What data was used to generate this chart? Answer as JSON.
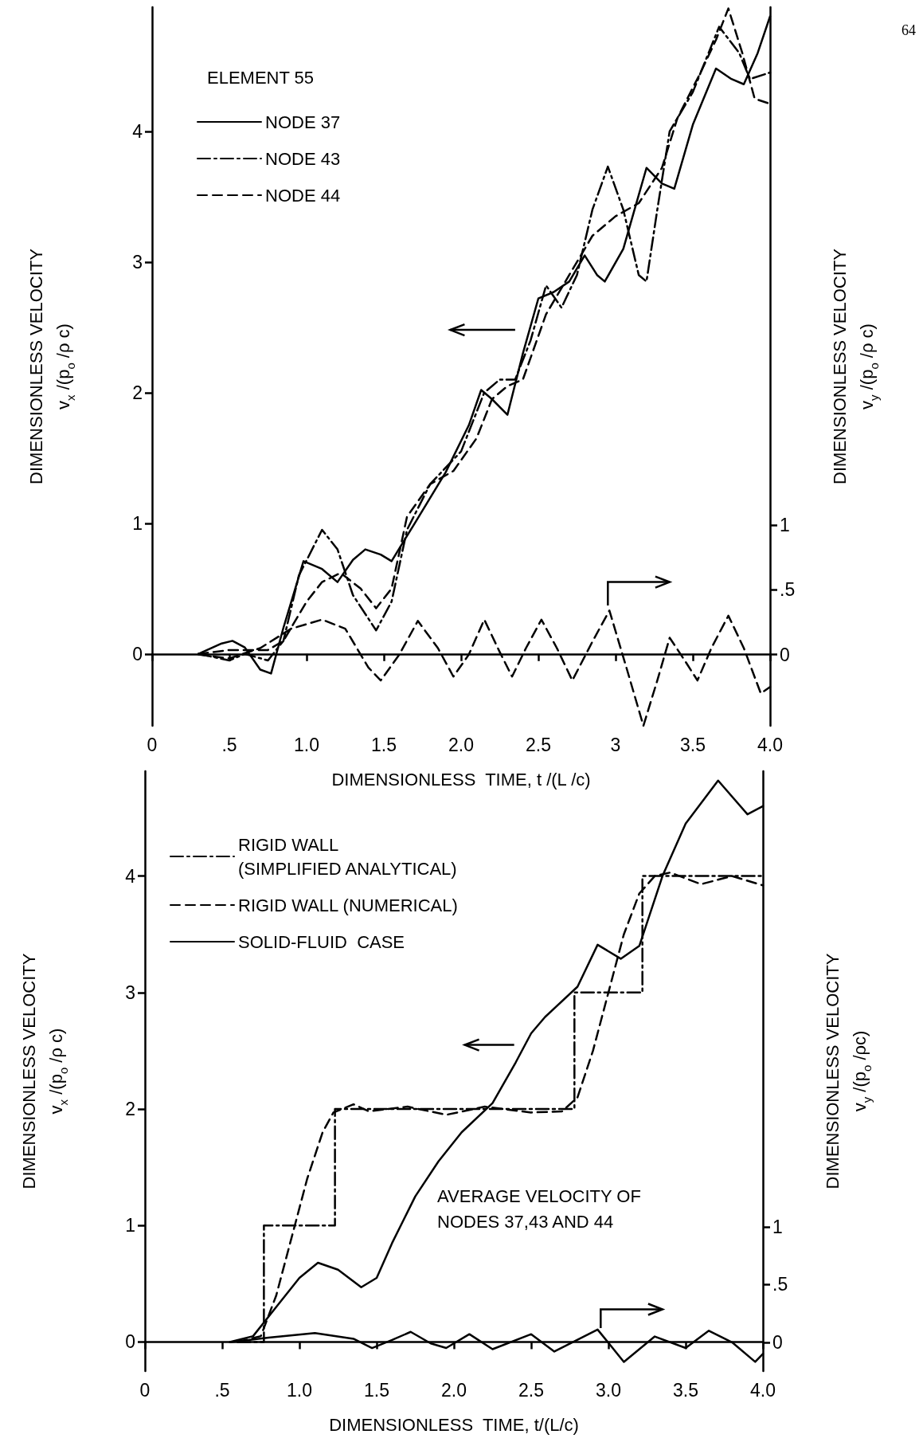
{
  "chart_data": [
    {
      "type": "line",
      "xlabel": "DIMENSIONLESS  TIME, t /(L /c)",
      "ylabel": "DIMENSIONLESS VELOCITY\nv$_{x}$ /(p$_{o}$ /ρ c)",
      "y2label": "DIMENSIONLESS VELOCITY\nv$_{y}$ /(p$_{o}$ /ρ c)",
      "legend_title": "ELEMENT 55",
      "legend": "top left",
      "xlim": [
        0,
        4.0
      ],
      "xticks": [
        0,
        {
          "value": 0.5,
          "label": ".5"
        },
        {
          "value": 1,
          "label": "1.0"
        },
        1.5,
        {
          "value": 2,
          "label": "2.0"
        },
        2.5,
        3,
        3.5,
        {
          "value": 4,
          "label": "4.0"
        }
      ],
      "ylim": [
        -0.55,
        4.95
      ],
      "yticks": [
        0,
        1,
        2,
        3,
        4
      ],
      "y2lim": [
        -0.55,
        5.0
      ],
      "y2ticks": [
        {
          "value": 0,
          "label": "0"
        },
        {
          "value": 0.5,
          "label": ".5"
        },
        {
          "value": 1,
          "label": "1"
        }
      ],
      "annotations": [
        "64"
      ],
      "series": [
        {
          "name": "NODE 37",
          "color": "#000000",
          "line_style": "solid",
          "x": [
            0.3,
            0.45,
            0.52,
            0.6,
            0.7,
            0.77,
            0.85,
            0.98,
            1.1,
            1.2,
            1.3,
            1.38,
            1.48,
            1.55,
            1.7,
            1.9,
            2.05,
            2.13,
            2.2,
            2.3,
            2.4,
            2.5,
            2.6,
            2.7,
            2.8,
            2.88,
            2.93,
            3.05,
            3.2,
            3.3,
            3.38,
            3.5,
            3.65,
            3.75,
            3.83,
            3.92,
            4.0
          ],
          "values": [
            0,
            0.08,
            0.1,
            0.05,
            -0.12,
            -0.15,
            0.2,
            0.71,
            0.65,
            0.55,
            0.72,
            0.8,
            0.76,
            0.71,
            1.0,
            1.39,
            1.75,
            2.02,
            1.95,
            1.83,
            2.3,
            2.72,
            2.77,
            2.85,
            3.05,
            2.9,
            2.85,
            3.1,
            3.72,
            3.6,
            3.56,
            4.05,
            4.48,
            4.4,
            4.36,
            4.6,
            4.88
          ]
        },
        {
          "name": "NODE 43",
          "color": "#000000",
          "line_style": "dashdot",
          "x": [
            0.3,
            0.5,
            0.6,
            0.75,
            0.85,
            0.95,
            1.1,
            1.2,
            1.3,
            1.45,
            1.55,
            1.65,
            1.8,
            2.0,
            2.15,
            2.25,
            2.35,
            2.45,
            2.55,
            2.65,
            2.75,
            2.85,
            2.95,
            3.05,
            3.15,
            3.2,
            3.27,
            3.35,
            3.5,
            3.67,
            3.8,
            3.87,
            4.0
          ],
          "values": [
            0,
            -0.05,
            0,
            -0.05,
            0.1,
            0.6,
            0.95,
            0.8,
            0.45,
            0.18,
            0.4,
            0.95,
            1.3,
            1.55,
            2.0,
            2.1,
            2.1,
            2.4,
            2.82,
            2.65,
            2.9,
            3.4,
            3.73,
            3.4,
            2.9,
            2.85,
            3.4,
            4.0,
            4.3,
            4.8,
            4.6,
            4.4,
            4.45
          ]
        },
        {
          "name": "NODE 44",
          "color": "#000000",
          "line_style": "dashed",
          "x": [
            0.3,
            0.5,
            0.75,
            0.85,
            1.0,
            1.1,
            1.22,
            1.35,
            1.45,
            1.55,
            1.65,
            1.8,
            1.95,
            2.1,
            2.2,
            2.3,
            2.4,
            2.55,
            2.7,
            2.85,
            3.0,
            3.15,
            3.3,
            3.4,
            3.55,
            3.65,
            3.73,
            3.82,
            3.9,
            4.0
          ],
          "values": [
            0,
            0.03,
            0.03,
            0.1,
            0.4,
            0.55,
            0.62,
            0.5,
            0.35,
            0.5,
            1.05,
            1.3,
            1.4,
            1.65,
            1.95,
            2.05,
            2.1,
            2.6,
            2.9,
            3.2,
            3.35,
            3.45,
            3.72,
            4.1,
            4.45,
            4.7,
            4.94,
            4.6,
            4.25,
            4.21
          ]
        },
        {
          "axis": "y2",
          "color": "#000000",
          "line_style": "dashed",
          "x": [
            0.3,
            0.5,
            0.7,
            0.9,
            1.1,
            1.25,
            1.4,
            1.48,
            1.6,
            1.72,
            1.85,
            1.95,
            2.05,
            2.15,
            2.25,
            2.33,
            2.42,
            2.52,
            2.62,
            2.72,
            2.85,
            2.96,
            3.07,
            3.18,
            3.27,
            3.35,
            3.45,
            3.53,
            3.62,
            3.73,
            3.83,
            3.94,
            4.0
          ],
          "values": [
            0,
            -0.03,
            0.05,
            0.2,
            0.27,
            0.2,
            -0.1,
            -0.2,
            0,
            0.26,
            0.05,
            -0.17,
            0,
            0.27,
            0.02,
            -0.17,
            0.05,
            0.27,
            0.05,
            -0.2,
            0.1,
            0.34,
            -0.1,
            -0.55,
            -0.2,
            0.13,
            -0.05,
            -0.2,
            0.05,
            0.3,
            0.05,
            -0.3,
            -0.25
          ]
        }
      ]
    },
    {
      "type": "line",
      "xlabel": "DIMENSIONLESS  TIME, t/(L/c)",
      "ylabel": "DIMENSIONLESS VELOCITY\nv$_{x}$ /(p$_{o}$ /ρ c)",
      "y2label": "DIMENSIONLESS VELOCITY\nv$_{y}$ /(p$_{o}$ /ρc)",
      "legend": "top left",
      "xlim": [
        0,
        4.0
      ],
      "xticks": [
        0,
        {
          "value": 0.5,
          "label": ".5"
        },
        {
          "value": 1,
          "label": "1.0"
        },
        1.5,
        {
          "value": 2,
          "label": "2.0"
        },
        2.5,
        {
          "value": 3,
          "label": "3.0"
        },
        3.5,
        {
          "value": 4,
          "label": "4.0"
        }
      ],
      "ylim": [
        -0.25,
        4.9
      ],
      "yticks": [
        0,
        1,
        2,
        3,
        4
      ],
      "y2lim": [
        -0.25,
        4.95
      ],
      "y2ticks": [
        {
          "value": 0,
          "label": "0"
        },
        {
          "value": 0.5,
          "label": ".5"
        },
        {
          "value": 1,
          "label": "1"
        }
      ],
      "annotations": [
        "AVERAGE VELOCITY OF\nNODES 37,43 AND 44"
      ],
      "series": [
        {
          "name": "RIGID WALL\n(SIMPLIFIED ANALYTICAL)",
          "type": "step",
          "color": "#000000",
          "line_style": "dashdot",
          "x": [
            0.6,
            0.77,
            1.23,
            2.78,
            3.22,
            4.0
          ],
          "values": [
            0,
            1,
            2,
            3,
            4,
            4
          ]
        },
        {
          "name": "RIGID WALL (NUMERICAL)",
          "color": "#000000",
          "line_style": "dashed",
          "x": [
            0.6,
            0.75,
            0.85,
            0.95,
            1.05,
            1.15,
            1.22,
            1.35,
            1.45,
            1.7,
            1.95,
            2.2,
            2.5,
            2.7,
            2.8,
            2.9,
            3.0,
            3.1,
            3.2,
            3.3,
            3.4,
            3.6,
            3.8,
            4.0
          ],
          "values": [
            0,
            0.05,
            0.4,
            0.9,
            1.4,
            1.8,
            1.97,
            2.04,
            1.98,
            2.02,
            1.95,
            2.02,
            1.97,
            1.98,
            2.1,
            2.5,
            3.0,
            3.5,
            3.85,
            4.0,
            4.03,
            3.93,
            4.0,
            3.92
          ]
        },
        {
          "name": "SOLID-FLUID  CASE",
          "color": "#000000",
          "line_style": "solid",
          "x": [
            0.55,
            0.7,
            0.85,
            1.0,
            1.12,
            1.25,
            1.4,
            1.5,
            1.6,
            1.75,
            1.9,
            2.05,
            2.25,
            2.4,
            2.5,
            2.59,
            2.8,
            2.93,
            3.08,
            3.2,
            3.35,
            3.5,
            3.71,
            3.9,
            4.0
          ],
          "values": [
            0,
            0.05,
            0.3,
            0.55,
            0.68,
            0.62,
            0.47,
            0.55,
            0.85,
            1.25,
            1.55,
            1.8,
            2.05,
            2.4,
            2.65,
            2.79,
            3.05,
            3.41,
            3.29,
            3.4,
            4.0,
            4.45,
            4.82,
            4.53,
            4.6
          ]
        },
        {
          "axis": "y2",
          "color": "#000000",
          "line_style": "solid",
          "x": [
            0.55,
            0.8,
            1.1,
            1.35,
            1.47,
            1.6,
            1.72,
            1.85,
            1.95,
            2.1,
            2.25,
            2.5,
            2.65,
            2.93,
            3.1,
            3.3,
            3.5,
            3.65,
            3.8,
            3.95,
            4.0
          ],
          "values": [
            0,
            0.04,
            0.08,
            0.03,
            -0.05,
            0.02,
            0.09,
            -0.01,
            -0.05,
            0.07,
            -0.06,
            0.07,
            -0.08,
            0.11,
            -0.17,
            0.05,
            -0.05,
            0.1,
            0,
            -0.17,
            -0.1
          ]
        }
      ]
    }
  ]
}
